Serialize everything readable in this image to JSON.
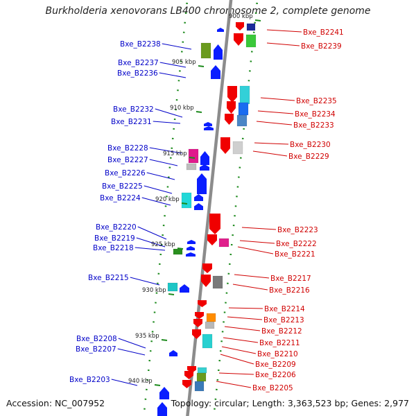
{
  "title": "Burkholderia xenovorans LB400 chromosome 2, complete genome",
  "footer": {
    "accession": "Accession: NC_007952",
    "summary": "Topology: circular; Length: 3,363,523 bp; Genes: 2,977"
  },
  "colors": {
    "left_label": "#0000c8",
    "right_label": "#d00000",
    "backbone": "#8c8c8c",
    "guide_dots": "#1c8a1c",
    "forward_strand": "#0a1eff",
    "reverse_strand": "#f00000"
  },
  "scale_ticks": [
    {
      "label": "900 kbp"
    },
    {
      "label": "905 kbp"
    },
    {
      "label": "910 kbp"
    },
    {
      "label": "915 kbp"
    },
    {
      "label": "920 kbp"
    },
    {
      "label": "925 kbp"
    },
    {
      "label": "930 kbp"
    },
    {
      "label": "935 kbp"
    },
    {
      "label": "940 kbp"
    }
  ],
  "left_labels": [
    "Bxe_B2238",
    "Bxe_B2237",
    "Bxe_B2236",
    "Bxe_B2232",
    "Bxe_B2231",
    "Bxe_B2228",
    "Bxe_B2227",
    "Bxe_B2226",
    "Bxe_B2225",
    "Bxe_B2224",
    "Bxe_B2220",
    "Bxe_B2219",
    "Bxe_B2218",
    "Bxe_B2215",
    "Bxe_B2208",
    "Bxe_B2207",
    "Bxe_B2203"
  ],
  "right_labels": [
    "Bxe_B2241",
    "Bxe_B2239",
    "Bxe_B2235",
    "Bxe_B2234",
    "Bxe_B2233",
    "Bxe_B2230",
    "Bxe_B2229",
    "Bxe_B2223",
    "Bxe_B2222",
    "Bxe_B2221",
    "Bxe_B2217",
    "Bxe_B2216",
    "Bxe_B2214",
    "Bxe_B2213",
    "Bxe_B2212",
    "Bxe_B2211",
    "Bxe_B2210",
    "Bxe_B2209",
    "Bxe_B2206",
    "Bxe_B2205"
  ]
}
